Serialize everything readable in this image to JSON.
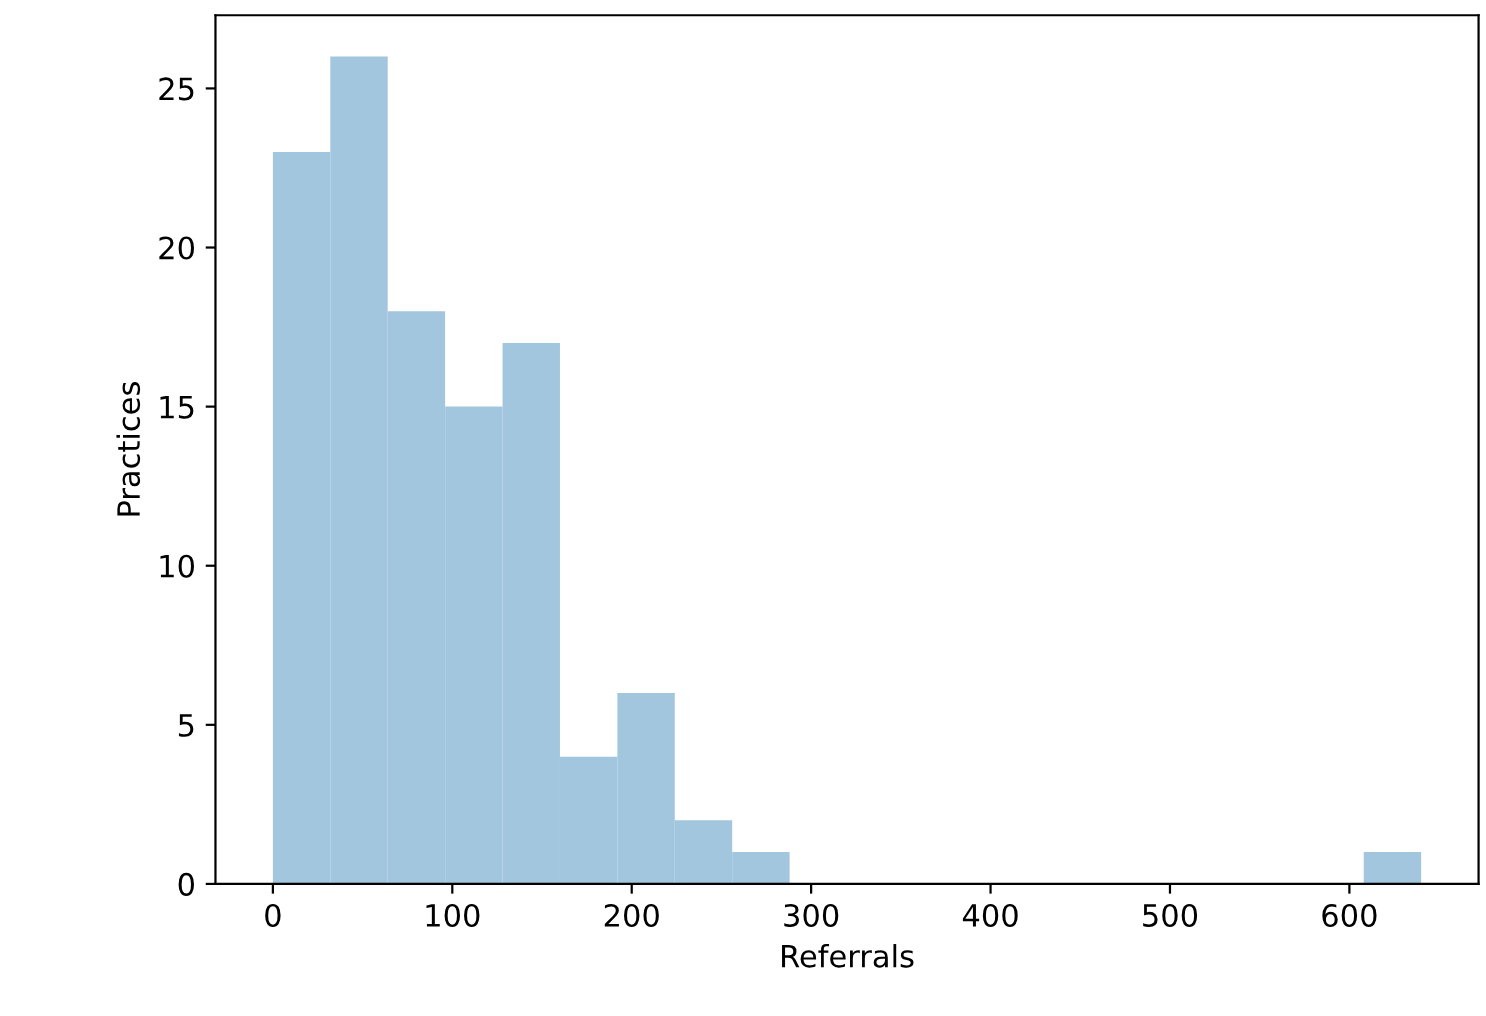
{
  "chart_data": {
    "type": "histogram",
    "xlabel": "Referrals",
    "ylabel": "Practices",
    "bins": [
      0,
      32,
      64,
      96,
      128,
      160,
      192,
      224,
      256,
      288,
      320,
      352,
      384,
      416,
      448,
      480,
      512,
      544,
      576,
      608,
      640
    ],
    "values": [
      23,
      26,
      18,
      15,
      17,
      4,
      6,
      2,
      1,
      0,
      0,
      0,
      0,
      0,
      0,
      0,
      0,
      0,
      0,
      1
    ],
    "color": "#a3c6df",
    "xlim": [
      -32,
      672
    ],
    "xticks": [
      0,
      100,
      200,
      300,
      400,
      500,
      600
    ],
    "ylim": [
      0,
      27.3
    ],
    "yticks": [
      0,
      5,
      10,
      15,
      20,
      25
    ],
    "grid": false
  }
}
